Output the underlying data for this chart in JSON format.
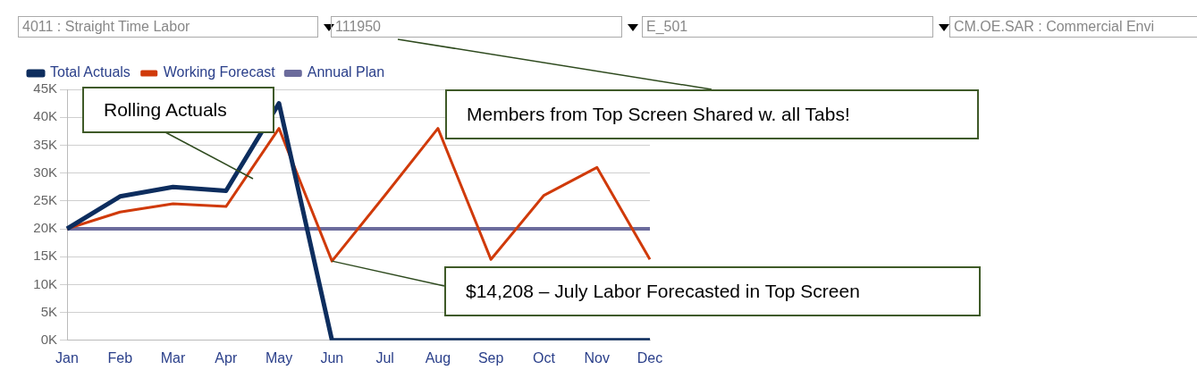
{
  "chart_data": {
    "type": "line",
    "categories": [
      "Jan",
      "Feb",
      "Mar",
      "Apr",
      "May",
      "Jun",
      "Jul",
      "Aug",
      "Sep",
      "Oct",
      "Nov",
      "Dec"
    ],
    "series": [
      {
        "name": "Total Actuals",
        "color": "#0d2d5e",
        "values": [
          20000,
          25800,
          27500,
          26800,
          42500,
          0,
          0,
          0,
          0,
          0,
          0,
          0
        ]
      },
      {
        "name": "Working Forecast",
        "color": "#d03a0a",
        "values": [
          20000,
          23000,
          24500,
          24000,
          38000,
          14208,
          26000,
          38000,
          14500,
          26000,
          31000,
          14500
        ]
      },
      {
        "name": "Annual Plan",
        "color": "#6b6b9c",
        "values": [
          20000,
          20000,
          20000,
          20000,
          20000,
          20000,
          20000,
          20000,
          20000,
          20000,
          20000,
          20000
        ]
      }
    ],
    "ylim": [
      0,
      45000
    ],
    "yticks": [
      {
        "value": 0,
        "label": "0K"
      },
      {
        "value": 5000,
        "label": "5K"
      },
      {
        "value": 10000,
        "label": "10K"
      },
      {
        "value": 15000,
        "label": "15K"
      },
      {
        "value": 20000,
        "label": "20K"
      },
      {
        "value": 25000,
        "label": "25K"
      },
      {
        "value": 30000,
        "label": "30K"
      },
      {
        "value": 35000,
        "label": "35K"
      },
      {
        "value": 40000,
        "label": "40K"
      },
      {
        "value": 45000,
        "label": "45K"
      }
    ],
    "grid": "y",
    "legend": "top left",
    "marker": "none",
    "line_style": "solid",
    "annotations": [
      "4011 : Straight Time Labor",
      "111950",
      "E_501",
      "CM.OE.SAR : Commercial Envi",
      "Rolling Actuals",
      "Members from Top Screen Shared w. all Tabs!",
      {
        "text": "$14,208 – July Labor Forecasted in Top Screen",
        "x": "Jun",
        "y": 14208
      }
    ]
  }
}
